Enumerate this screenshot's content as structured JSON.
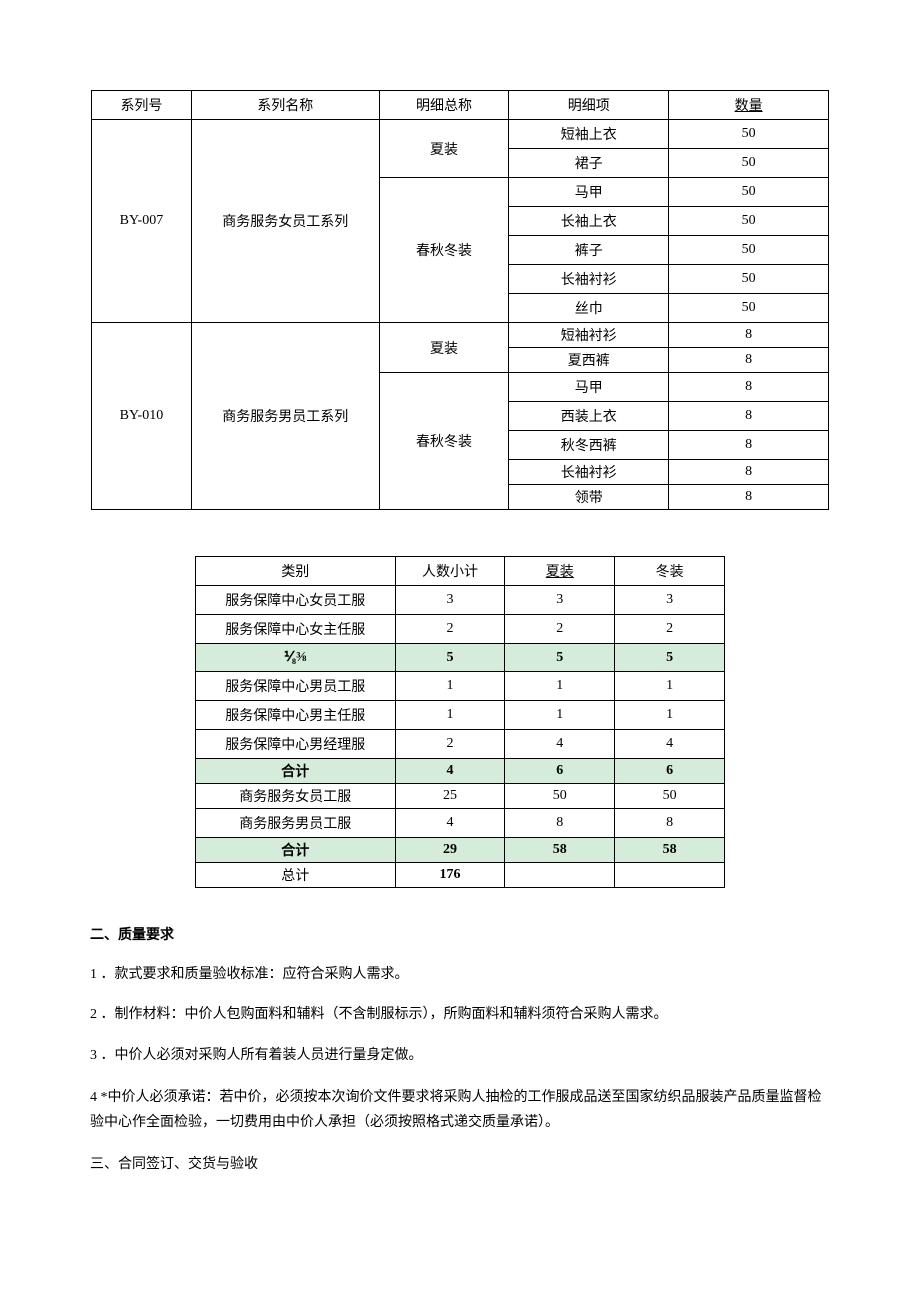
{
  "table1": {
    "headers": {
      "series_no": "系列号",
      "series_name": "系列名称",
      "detail_total": "明细总称",
      "detail_item": "明细项",
      "qty": "数量"
    },
    "groups": [
      {
        "series_no": "BY-007",
        "series_name": "商务服务女员工系列",
        "sections": [
          {
            "detail_total": "夏装",
            "items": [
              {
                "name": "短袖上衣",
                "qty": "50",
                "tight": false
              },
              {
                "name": "裙子",
                "qty": "50",
                "tight": false
              }
            ]
          },
          {
            "detail_total": "春秋冬装",
            "items": [
              {
                "name": "马甲",
                "qty": "50",
                "tight": false
              },
              {
                "name": "长袖上衣",
                "qty": "50",
                "tight": false
              },
              {
                "name": "裤子",
                "qty": "50",
                "tight": false
              },
              {
                "name": "长袖衬衫",
                "qty": "50",
                "tight": false
              },
              {
                "name": "丝巾",
                "qty": "50",
                "tight": false
              }
            ]
          }
        ]
      },
      {
        "series_no": "BY-010",
        "series_name": "商务服务男员工系列",
        "sections": [
          {
            "detail_total": "夏装",
            "items": [
              {
                "name": "短袖衬衫",
                "qty": "8",
                "tight": true
              },
              {
                "name": "夏西裤",
                "qty": "8",
                "tight": true
              }
            ]
          },
          {
            "detail_total": "春秋冬装",
            "items": [
              {
                "name": "马甲",
                "qty": "8",
                "tight": false
              },
              {
                "name": "西装上衣",
                "qty": "8",
                "tight": false
              },
              {
                "name": "秋冬西裤",
                "qty": "8",
                "tight": false
              },
              {
                "name": "长袖衬衫",
                "qty": "8",
                "tight": true
              },
              {
                "name": "领带",
                "qty": "8",
                "tight": true
              }
            ]
          }
        ]
      }
    ]
  },
  "table2": {
    "headers": {
      "category": "类别",
      "subtotal": "人数小计",
      "summer": "夏装",
      "winter": "冬装"
    },
    "rows": [
      {
        "cells": [
          "服务保障中心女员工服",
          "3",
          "3",
          "3"
        ],
        "green": false,
        "tight": false
      },
      {
        "cells": [
          "服务保障中心女主任服",
          "2",
          "2",
          "2"
        ],
        "green": false,
        "tight": false
      },
      {
        "cells": [
          "⅟₈⅜",
          "5",
          "5",
          "5"
        ],
        "green": true,
        "tight": false
      },
      {
        "cells": [
          "服务保障中心男员工服",
          "1",
          "1",
          "1"
        ],
        "green": false,
        "tight": false
      },
      {
        "cells": [
          "服务保障中心男主任服",
          "1",
          "1",
          "1"
        ],
        "green": false,
        "tight": false
      },
      {
        "cells": [
          "服务保障中心男经理服",
          "2",
          "4",
          "4"
        ],
        "green": false,
        "tight": false
      },
      {
        "cells": [
          "合计",
          "4",
          "6",
          "6"
        ],
        "green": true,
        "tight": true
      },
      {
        "cells": [
          "商务服务女员工服",
          "25",
          "50",
          "50"
        ],
        "green": false,
        "tight": true
      },
      {
        "cells": [
          "商务服务男员工服",
          "4",
          "8",
          "8"
        ],
        "green": false,
        "tight": false
      },
      {
        "cells": [
          "合计",
          "29",
          "58",
          "58"
        ],
        "green": true,
        "tight": true
      },
      {
        "cells": [
          "总计",
          "176",
          "",
          ""
        ],
        "green": false,
        "tight": true,
        "bold_col2": true
      }
    ]
  },
  "sections": {
    "quality_title": "二、质量要求",
    "q1": "1 ．款式要求和质量验收标准：应符合采购人需求。",
    "q2": "2 ．制作材料：中价人包购面料和辅料（不含制服标示），所购面料和辅料须符合采购人需求。",
    "q3": "3 ．中价人必须对采购人所有着装人员进行量身定做。",
    "q4": "4 *中价人必须承诺：若中价，必须按本次询价文件要求将采购人抽检的工作服成品送至国家纺织品服装产品质量监督检验中心作全面检验，一切费用由中价人承担（必须按照格式递交质量承诺）。",
    "contract_title": "三、合同签订、交货与验收"
  },
  "styles": {
    "green_bg": "#d4ecd9",
    "border_color": "#000000",
    "text_color": "#000000",
    "base_fontsize": 14
  }
}
